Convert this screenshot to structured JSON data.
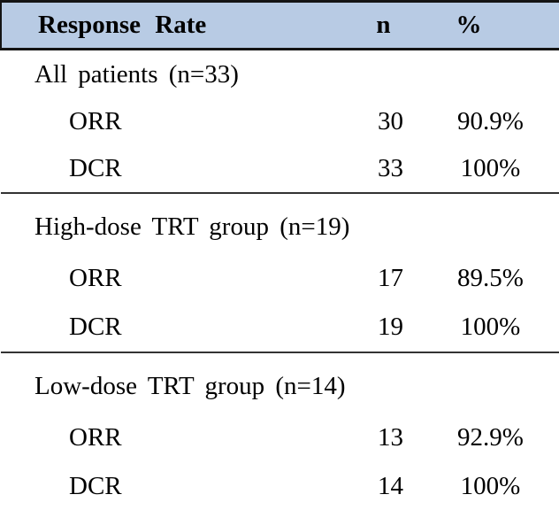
{
  "colors": {
    "header_bg": "#b8cbe4",
    "border_dark": "#141414",
    "divider": "#333333",
    "text": "#000000"
  },
  "table": {
    "header": {
      "col1": "Response Rate",
      "col2": "n",
      "col3": "%"
    },
    "sections": [
      {
        "title": "All patients (n=33)",
        "rows": [
          {
            "label": "ORR",
            "n": "30",
            "pct": "90.9%"
          },
          {
            "label": "DCR",
            "n": "33",
            "pct": "100%"
          }
        ]
      },
      {
        "title": "High-dose TRT group (n=19)",
        "rows": [
          {
            "label": "ORR",
            "n": "17",
            "pct": "89.5%"
          },
          {
            "label": "DCR",
            "n": "19",
            "pct": "100%"
          }
        ]
      },
      {
        "title": "Low-dose TRT group (n=14)",
        "rows": [
          {
            "label": "ORR",
            "n": "13",
            "pct": "92.9%"
          },
          {
            "label": "DCR",
            "n": "14",
            "pct": "100%"
          }
        ]
      }
    ]
  }
}
